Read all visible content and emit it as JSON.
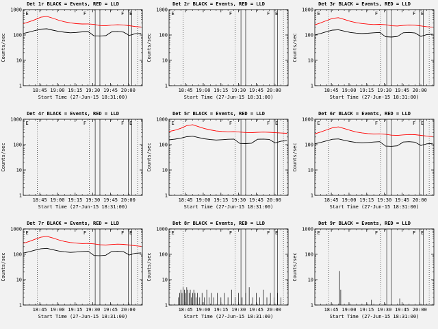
{
  "window": {
    "description": "3x3 grid of detector count-rate log plots"
  },
  "chart_data": {
    "type": "line",
    "layout": "3x3-grid",
    "common": {
      "ylabel": "Counts/sec",
      "xlabel": "Start Time (27-Jun-15 18:31:00)",
      "ylog": true,
      "ylim": [
        1,
        1000
      ],
      "yticks": [
        1,
        10,
        100,
        1000
      ],
      "xrange": [
        0,
        101
      ],
      "xticks": [
        {
          "m": 14,
          "label": "18:45"
        },
        {
          "m": 29,
          "label": "19:00"
        },
        {
          "m": 44,
          "label": "19:15"
        },
        {
          "m": 59,
          "label": "19:30"
        },
        {
          "m": 74,
          "label": "19:45"
        },
        {
          "m": 89,
          "label": "20:00"
        }
      ],
      "x": [
        0,
        5,
        10,
        15,
        20,
        25,
        30,
        35,
        40,
        45,
        50,
        55,
        60,
        65,
        70,
        75,
        80,
        85,
        90,
        95,
        100
      ],
      "legend": [
        {
          "name": "Events",
          "color": "#000000"
        },
        {
          "name": "LLD",
          "color": "#ff0000"
        }
      ],
      "colors": {
        "events": "#000000",
        "lld": "#ff0000"
      },
      "vlines": [
        {
          "m": 12,
          "style": "dotted"
        },
        {
          "m": 56,
          "style": "dotted"
        },
        {
          "m": 61,
          "style": "solid"
        },
        {
          "m": 65,
          "style": "solid"
        },
        {
          "m": 89,
          "style": "solid"
        },
        {
          "m": 92,
          "style": "solid"
        },
        {
          "m": 97,
          "style": "dotted"
        }
      ],
      "flags": [
        {
          "m": 2,
          "text": "E"
        },
        {
          "m": 51,
          "text": "F"
        },
        {
          "m": 83,
          "text": "F"
        },
        {
          "m": 90,
          "text": "E"
        }
      ]
    },
    "panels": [
      {
        "det": "Det 1r",
        "title": "Det 1r BLACK = Events, RED = LLD",
        "kind": "lines",
        "red": [
          280,
          330,
          400,
          500,
          540,
          460,
          380,
          330,
          300,
          280,
          270,
          272,
          260,
          235,
          230,
          245,
          252,
          248,
          232,
          215,
          205
        ],
        "black": [
          115,
          130,
          150,
          170,
          175,
          155,
          138,
          128,
          122,
          126,
          132,
          136,
          92,
          90,
          94,
          132,
          136,
          130,
          96,
          112,
          116
        ]
      },
      {
        "det": "Det 2r",
        "title": "Det 2r BLACK = Events, RED = LLD",
        "kind": "empty"
      },
      {
        "det": "Det 3r",
        "title": "Det 3r BLACK = Events, RED = LLD",
        "kind": "lines",
        "red": [
          250,
          300,
          370,
          450,
          480,
          410,
          345,
          305,
          282,
          268,
          258,
          262,
          252,
          230,
          226,
          238,
          246,
          242,
          228,
          212,
          202
        ],
        "black": [
          100,
          115,
          135,
          155,
          160,
          142,
          126,
          118,
          113,
          117,
          122,
          126,
          85,
          83,
          87,
          122,
          126,
          120,
          88,
          104,
          108
        ]
      },
      {
        "det": "Det 4r",
        "title": "Det 4r BLACK = Events, RED = LLD",
        "kind": "empty"
      },
      {
        "det": "Det 5r",
        "title": "Det 5r BLACK = Events, RED = LLD",
        "kind": "lines",
        "red": [
          330,
          370,
          440,
          560,
          610,
          510,
          430,
          380,
          345,
          330,
          320,
          324,
          312,
          300,
          296,
          306,
          312,
          306,
          296,
          286,
          280
        ],
        "black": [
          155,
          165,
          180,
          205,
          215,
          190,
          170,
          158,
          152,
          157,
          162,
          166,
          112,
          110,
          114,
          162,
          166,
          160,
          117,
          137,
          142
        ]
      },
      {
        "det": "Det 6r",
        "title": "Det 6r BLACK = Events, RED = LLD",
        "kind": "lines",
        "red": [
          265,
          315,
          380,
          460,
          500,
          430,
          365,
          315,
          290,
          272,
          262,
          266,
          256,
          236,
          230,
          242,
          250,
          246,
          231,
          216,
          206
        ],
        "black": [
          108,
          122,
          142,
          162,
          168,
          148,
          132,
          122,
          117,
          121,
          127,
          131,
          88,
          86,
          90,
          127,
          131,
          125,
          92,
          108,
          112
        ]
      },
      {
        "det": "Det 7r",
        "title": "Det 7r BLACK = Events, RED = LLD",
        "kind": "lines",
        "red": [
          270,
          320,
          390,
          470,
          510,
          440,
          370,
          320,
          292,
          275,
          264,
          268,
          258,
          237,
          231,
          243,
          251,
          247,
          232,
          216,
          206
        ],
        "black": [
          112,
          126,
          146,
          166,
          172,
          152,
          135,
          125,
          119,
          123,
          129,
          133,
          90,
          88,
          92,
          129,
          133,
          127,
          94,
          110,
          114
        ]
      },
      {
        "det": "Det 8r",
        "title": "Det 8r BLACK = Events, RED = LLD",
        "kind": "spikes",
        "spikes": [
          [
            8,
            2
          ],
          [
            9,
            3
          ],
          [
            10,
            4
          ],
          [
            11,
            3
          ],
          [
            12,
            5
          ],
          [
            13,
            4
          ],
          [
            14,
            3
          ],
          [
            15,
            5
          ],
          [
            16,
            4
          ],
          [
            17,
            3
          ],
          [
            18,
            4
          ],
          [
            19,
            2
          ],
          [
            20,
            3
          ],
          [
            21,
            4
          ],
          [
            22,
            3
          ],
          [
            23,
            2
          ],
          [
            24,
            3
          ],
          [
            26,
            2
          ],
          [
            28,
            3
          ],
          [
            30,
            2
          ],
          [
            32,
            4
          ],
          [
            34,
            2
          ],
          [
            36,
            3
          ],
          [
            38,
            2
          ],
          [
            41,
            3
          ],
          [
            44,
            2
          ],
          [
            47,
            3
          ],
          [
            50,
            2
          ],
          [
            53,
            4
          ],
          [
            56,
            2
          ],
          [
            59,
            3
          ],
          [
            62,
            2
          ],
          [
            65,
            3
          ],
          [
            68,
            5
          ],
          [
            71,
            2
          ],
          [
            74,
            3
          ],
          [
            77,
            2
          ],
          [
            80,
            4
          ],
          [
            83,
            2
          ],
          [
            86,
            3
          ],
          [
            89,
            2
          ],
          [
            92,
            3
          ],
          [
            95,
            2
          ]
        ]
      },
      {
        "det": "Det 9r",
        "title": "Det 9r BLACK = Events, RED = LLD",
        "kind": "spikes",
        "spikes": [
          [
            21,
            22
          ],
          [
            22,
            4
          ],
          [
            48,
            1.6
          ],
          [
            72,
            1.8
          ]
        ]
      }
    ]
  }
}
